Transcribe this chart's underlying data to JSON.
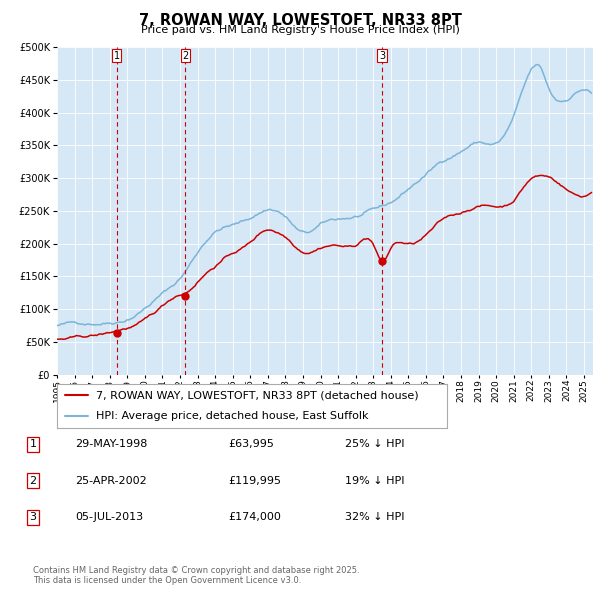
{
  "title": "7, ROWAN WAY, LOWESTOFT, NR33 8PT",
  "subtitle": "Price paid vs. HM Land Registry's House Price Index (HPI)",
  "background_color": "#d6e8f5",
  "ylim": [
    0,
    500000
  ],
  "yticks": [
    0,
    50000,
    100000,
    150000,
    200000,
    250000,
    300000,
    350000,
    400000,
    450000,
    500000
  ],
  "xlim_start": 1995.0,
  "xlim_end": 2025.5,
  "purchases": [
    {
      "label": "1",
      "date_year": 1998.41,
      "price": 63995
    },
    {
      "label": "2",
      "date_year": 2002.31,
      "price": 119995
    },
    {
      "label": "3",
      "date_year": 2013.5,
      "price": 174000
    }
  ],
  "legend_line1": "7, ROWAN WAY, LOWESTOFT, NR33 8PT (detached house)",
  "legend_line2": "HPI: Average price, detached house, East Suffolk",
  "table": [
    {
      "num": "1",
      "date": "29-MAY-1998",
      "price": "£63,995",
      "pct": "25% ↓ HPI"
    },
    {
      "num": "2",
      "date": "25-APR-2002",
      "price": "£119,995",
      "pct": "19% ↓ HPI"
    },
    {
      "num": "3",
      "date": "05-JUL-2013",
      "price": "£174,000",
      "pct": "32% ↓ HPI"
    }
  ],
  "footer": "Contains HM Land Registry data © Crown copyright and database right 2025.\nThis data is licensed under the Open Government Licence v3.0.",
  "hpi_color": "#7ab4d8",
  "price_color": "#cc0000",
  "vline_color": "#cc0000",
  "grid_color": "#ffffff",
  "title_fontsize": 10.5,
  "subtitle_fontsize": 8,
  "tick_fontsize": 7,
  "legend_fontsize": 8,
  "table_fontsize": 8,
  "footer_fontsize": 6
}
